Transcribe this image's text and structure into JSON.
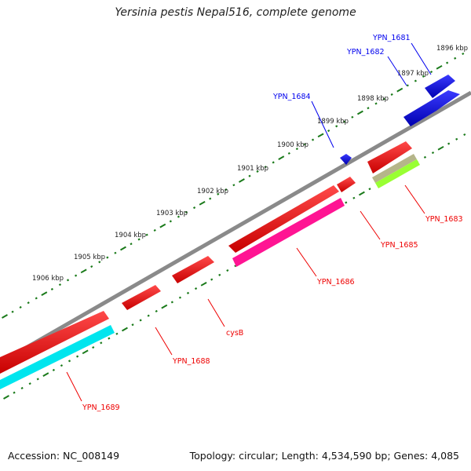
{
  "title": "Yersinia pestis Nepal516, complete genome",
  "footer": {
    "accession": "Accession: NC_008149",
    "summary": "Topology: circular; Length: 4,534,590 bp; Genes: 4,085"
  },
  "scale_ticks": [
    "1896 kbp",
    "1897 kbp",
    "1898 kbp",
    "1899 kbp",
    "1900 kbp",
    "1901 kbp",
    "1902 kbp",
    "1903 kbp",
    "1904 kbp",
    "1905 kbp",
    "1906 kbp"
  ],
  "genes": [
    {
      "name": "YPN_1681",
      "strand": "forward",
      "color": "#0000ee"
    },
    {
      "name": "YPN_1682",
      "strand": "forward",
      "color": "#0000ee"
    },
    {
      "name": "YPN_1684",
      "strand": "forward",
      "color": "#0000ee"
    },
    {
      "name": "YPN_1683",
      "strand": "reverse",
      "color": "#ee0000"
    },
    {
      "name": "YPN_1685",
      "strand": "reverse",
      "color": "#ee0000"
    },
    {
      "name": "YPN_1686",
      "strand": "reverse",
      "color": "#ee0000"
    },
    {
      "name": "cysB",
      "strand": "reverse",
      "color": "#ee0000"
    },
    {
      "name": "YPN_1688",
      "strand": "reverse",
      "color": "#ee0000"
    },
    {
      "name": "YPN_1689",
      "strand": "reverse",
      "color": "#ee0000"
    }
  ],
  "colors": {
    "forward_gene": "#0000ee",
    "reverse_gene": "#ee0000",
    "backbone": "#888888",
    "ticks": "#1a7a1a",
    "cds_magenta": "#ff1493",
    "cds_cyan": "#00e5ee",
    "cds_olive": "#b5b58a",
    "cds_lime": "#99ff33"
  }
}
